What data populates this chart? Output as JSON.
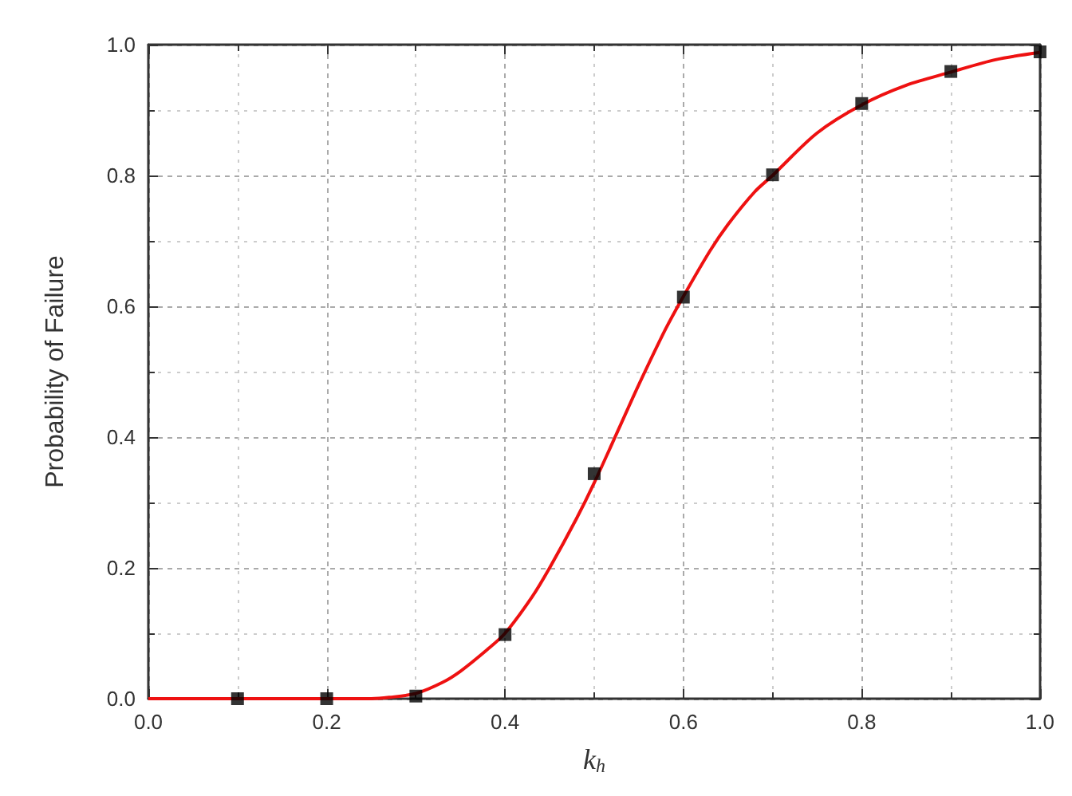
{
  "chart_data": {
    "type": "scatter",
    "xlabel": "k$_{h}$",
    "ylabel": "Probability of Failure",
    "xlim": [
      0,
      1
    ],
    "ylim": [
      0,
      1
    ],
    "xticks": [
      {
        "value": 0,
        "label": "0.0"
      },
      0.2,
      0.4,
      0.6,
      0.8,
      {
        "value": 1,
        "label": "1.0"
      }
    ],
    "yticks": [
      {
        "value": 0,
        "label": "0.0"
      },
      0.2,
      0.4,
      0.6,
      0.8,
      {
        "value": 1,
        "label": "1.0"
      }
    ],
    "grid": true,
    "series": [
      {
        "color": "#000000",
        "marker": "square",
        "x": [
          0.1,
          0.2,
          0.3,
          0.4,
          0.5,
          0.6,
          0.7,
          0.8,
          0.9,
          1.0
        ],
        "values": [
          0.0,
          0.0,
          0.004,
          0.098,
          0.344,
          0.614,
          0.801,
          0.91,
          0.959,
          0.989
        ]
      },
      {
        "type": "line",
        "color": "#ee1111",
        "marker": "none",
        "line_style": "solid",
        "x": [
          0,
          0.1,
          0.2,
          0.25,
          0.27,
          0.3,
          0.33,
          0.35,
          0.38,
          0.4,
          0.43,
          0.45,
          0.48,
          0.5,
          0.53,
          0.55,
          0.58,
          0.6,
          0.63,
          0.65,
          0.68,
          0.7,
          0.75,
          0.8,
          0.85,
          0.9,
          0.95,
          1.0
        ],
        "values": [
          0,
          0,
          0,
          0.0,
          0.002,
          0.008,
          0.025,
          0.042,
          0.075,
          0.1,
          0.155,
          0.2,
          0.275,
          0.33,
          0.42,
          0.48,
          0.565,
          0.615,
          0.685,
          0.725,
          0.775,
          0.8,
          0.865,
          0.908,
          0.938,
          0.958,
          0.977,
          0.988
        ]
      }
    ]
  }
}
